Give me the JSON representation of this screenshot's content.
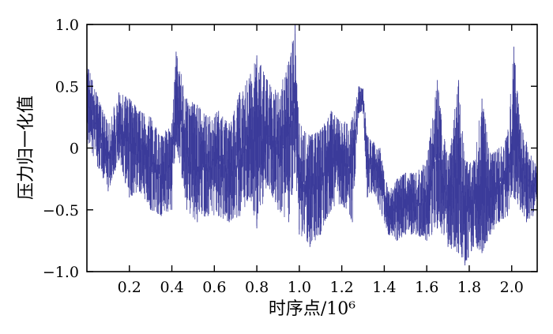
{
  "chart_data": {
    "type": "line",
    "title": "",
    "xlabel": "时序点/10⁶",
    "ylabel": "压力归一化值",
    "xlim": [
      0,
      2.12
    ],
    "ylim": [
      -1.0,
      1.0
    ],
    "x_ticks": [
      0.2,
      0.4,
      0.6,
      0.8,
      1.0,
      1.2,
      1.4,
      1.6,
      1.8,
      2.0
    ],
    "x_tick_labels": [
      "0.2",
      "0.4",
      "0.6",
      "0.8",
      "1.0",
      "1.2",
      "1.4",
      "1.6",
      "1.8",
      "2.0"
    ],
    "y_ticks": [
      1.0,
      0.5,
      0,
      -0.5,
      -1.0
    ],
    "y_tick_labels": [
      "1.0",
      "0.5",
      "0",
      "−0.5",
      "−1.0"
    ],
    "grid": false,
    "legend": "none",
    "series_color": "#3b3b9a",
    "series": [
      {
        "envelope": [
          {
            "x": 0.0,
            "hi": 0.7,
            "lo": 0.05
          },
          {
            "x": 0.05,
            "hi": 0.42,
            "lo": -0.15
          },
          {
            "x": 0.1,
            "hi": 0.2,
            "lo": -0.35
          },
          {
            "x": 0.15,
            "hi": 0.45,
            "lo": -0.1
          },
          {
            "x": 0.2,
            "hi": 0.4,
            "lo": -0.4
          },
          {
            "x": 0.25,
            "hi": 0.3,
            "lo": -0.35
          },
          {
            "x": 0.3,
            "hi": 0.25,
            "lo": -0.5
          },
          {
            "x": 0.35,
            "hi": 0.1,
            "lo": -0.55
          },
          {
            "x": 0.4,
            "hi": 0.2,
            "lo": -0.5
          },
          {
            "x": 0.42,
            "hi": 0.78,
            "lo": 0.05
          },
          {
            "x": 0.47,
            "hi": 0.4,
            "lo": -0.5
          },
          {
            "x": 0.52,
            "hi": 0.35,
            "lo": -0.6
          },
          {
            "x": 0.57,
            "hi": 0.25,
            "lo": -0.55
          },
          {
            "x": 0.62,
            "hi": 0.3,
            "lo": -0.55
          },
          {
            "x": 0.67,
            "hi": 0.2,
            "lo": -0.6
          },
          {
            "x": 0.72,
            "hi": 0.45,
            "lo": -0.55
          },
          {
            "x": 0.77,
            "hi": 0.6,
            "lo": -0.4
          },
          {
            "x": 0.8,
            "hi": 0.75,
            "lo": -0.65
          },
          {
            "x": 0.85,
            "hi": 0.55,
            "lo": -0.3
          },
          {
            "x": 0.9,
            "hi": 0.45,
            "lo": -0.5
          },
          {
            "x": 0.95,
            "hi": 0.7,
            "lo": -0.6
          },
          {
            "x": 0.98,
            "hi": 1.0,
            "lo": -0.2
          },
          {
            "x": 1.0,
            "hi": 0.2,
            "lo": -0.7
          },
          {
            "x": 1.05,
            "hi": 0.1,
            "lo": -0.8
          },
          {
            "x": 1.1,
            "hi": 0.15,
            "lo": -0.7
          },
          {
            "x": 1.15,
            "hi": 0.3,
            "lo": -0.5
          },
          {
            "x": 1.2,
            "hi": 0.2,
            "lo": -0.45
          },
          {
            "x": 1.25,
            "hi": 0.25,
            "lo": -0.6
          },
          {
            "x": 1.28,
            "hi": 0.5,
            "lo": 0.28
          },
          {
            "x": 1.3,
            "hi": 0.48,
            "lo": 0.3
          },
          {
            "x": 1.32,
            "hi": 0.1,
            "lo": -0.4
          },
          {
            "x": 1.35,
            "hi": 0.05,
            "lo": -0.35
          },
          {
            "x": 1.38,
            "hi": 0.0,
            "lo": -0.5
          },
          {
            "x": 1.42,
            "hi": -0.35,
            "lo": -0.7
          },
          {
            "x": 1.46,
            "hi": -0.25,
            "lo": -0.75
          },
          {
            "x": 1.5,
            "hi": -0.2,
            "lo": -0.7
          },
          {
            "x": 1.55,
            "hi": -0.2,
            "lo": -0.7
          },
          {
            "x": 1.6,
            "hi": -0.1,
            "lo": -0.75
          },
          {
            "x": 1.65,
            "hi": 0.55,
            "lo": -0.65
          },
          {
            "x": 1.7,
            "hi": -0.1,
            "lo": -0.8
          },
          {
            "x": 1.75,
            "hi": 0.55,
            "lo": -0.85
          },
          {
            "x": 1.78,
            "hi": -0.1,
            "lo": -0.95
          },
          {
            "x": 1.82,
            "hi": -0.1,
            "lo": -0.8
          },
          {
            "x": 1.86,
            "hi": 0.4,
            "lo": -0.85
          },
          {
            "x": 1.9,
            "hi": -0.05,
            "lo": -0.7
          },
          {
            "x": 1.94,
            "hi": 0.0,
            "lo": -0.6
          },
          {
            "x": 1.98,
            "hi": 0.1,
            "lo": -0.55
          },
          {
            "x": 2.01,
            "hi": 0.82,
            "lo": -0.4
          },
          {
            "x": 2.04,
            "hi": 0.2,
            "lo": -0.5
          },
          {
            "x": 2.07,
            "hi": 0.05,
            "lo": -0.6
          },
          {
            "x": 2.1,
            "hi": -0.1,
            "lo": -0.55
          },
          {
            "x": 2.12,
            "hi": -0.15,
            "lo": -0.4
          }
        ]
      }
    ]
  }
}
